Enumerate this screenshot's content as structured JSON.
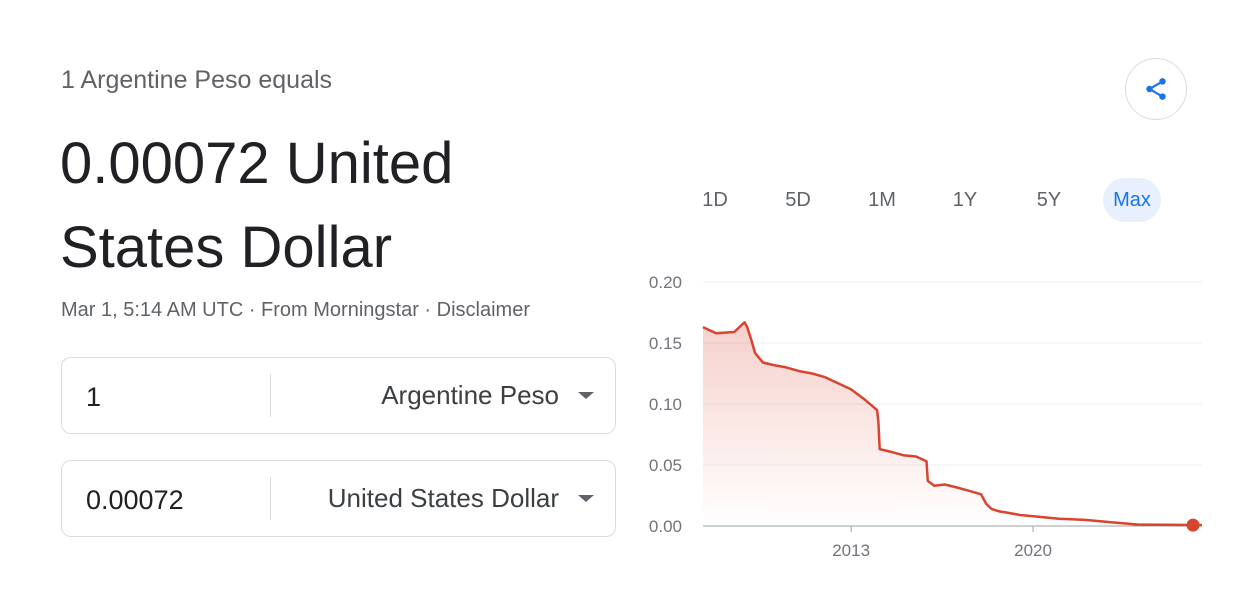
{
  "header": {
    "equals_text": "1 Argentine Peso equals",
    "result_text": "0.00072 United States Dollar",
    "meta_text": "Mar 1, 5:14 AM UTC · From Morningstar · Disclaimer"
  },
  "converter": {
    "from": {
      "amount": "1",
      "currency": "Argentine Peso"
    },
    "to": {
      "amount": "0.00072",
      "currency": "United States Dollar"
    }
  },
  "share_icon": "share-icon",
  "ranges": [
    "1D",
    "5D",
    "1M",
    "1Y",
    "5Y",
    "Max"
  ],
  "active_range": "Max",
  "colors": {
    "line": "#d9442f",
    "active_range_bg": "#e8f0fe",
    "active_range_text": "#1a73e8",
    "share_icon": "#1a73e8"
  },
  "chart_data": {
    "type": "area",
    "x_ticks": [
      2013,
      2020
    ],
    "y_ticks": [
      "0.00",
      "0.05",
      "0.10",
      "0.15",
      "0.20"
    ],
    "ylim": [
      0,
      0.2
    ],
    "xlim": [
      2007.3,
      2026.5
    ],
    "grid": true,
    "series": [
      {
        "x": [
          2007.3,
          2007.8,
          2008.5,
          2008.9,
          2009.0,
          2009.15,
          2009.3,
          2009.6,
          2010.0,
          2010.5,
          2011.0,
          2011.5,
          2012.0,
          2012.5,
          2013.0,
          2013.5,
          2014.0,
          2014.05,
          2014.1,
          2014.5,
          2015.0,
          2015.5,
          2015.9,
          2015.95,
          2016.2,
          2016.6,
          2017.0,
          2017.5,
          2018.0,
          2018.2,
          2018.4,
          2018.7,
          2019.0,
          2019.5,
          2020.0,
          2021.0,
          2022.0,
          2023.0,
          2024.0,
          2025.0,
          2026.0,
          2026.5
        ],
        "y": [
          0.163,
          0.158,
          0.159,
          0.167,
          0.163,
          0.153,
          0.142,
          0.134,
          0.132,
          0.13,
          0.127,
          0.125,
          0.122,
          0.117,
          0.112,
          0.104,
          0.095,
          0.085,
          0.063,
          0.061,
          0.058,
          0.057,
          0.053,
          0.037,
          0.033,
          0.034,
          0.032,
          0.029,
          0.026,
          0.018,
          0.014,
          0.012,
          0.011,
          0.009,
          0.008,
          0.006,
          0.005,
          0.003,
          0.0012,
          0.001,
          0.0008,
          0.0007
        ]
      }
    ]
  }
}
